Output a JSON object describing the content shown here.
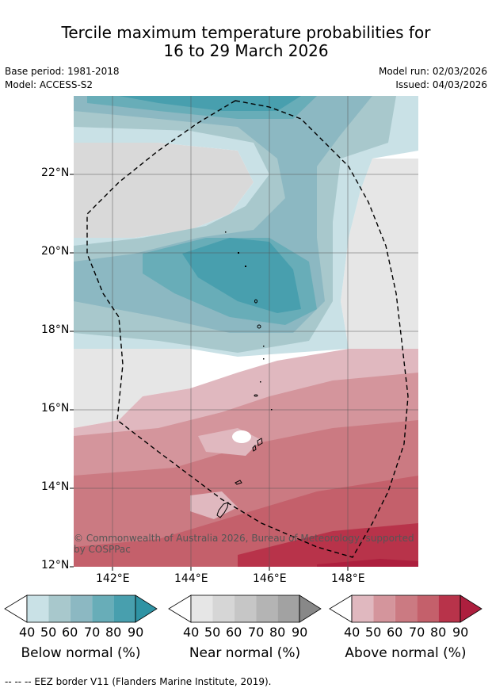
{
  "title_line1": "Tercile maximum temperature probabilities for",
  "title_line2": "16 to 29 March 2026",
  "base_period": "Base period: 1981-2018",
  "model": "Model: ACCESS-S2",
  "model_run": "Model run: 02/03/2026",
  "issued": "Issued: 04/03/2026",
  "copyright": "© Commonwealth of Australia 2026, Bureau of Meteorology, supported by COSPPac",
  "footer": "--  --  -- EEZ border V11 (Flanders Marine Institute, 2019).",
  "lat_labels": [
    "22°N",
    "20°N",
    "18°N",
    "16°N",
    "14°N",
    "12°N"
  ],
  "lon_labels": [
    "142°E",
    "144°E",
    "146°E",
    "148°E"
  ],
  "colorbars": [
    {
      "label": "Below normal (%)",
      "ticks": [
        "40",
        "50",
        "60",
        "70",
        "80",
        "90"
      ],
      "colors": [
        "#ffffff",
        "#c9e1e6",
        "#a8c8cc",
        "#8cb8c2",
        "#68adb8",
        "#489fae",
        "#2f93a4"
      ]
    },
    {
      "label": "Near normal (%)",
      "ticks": [
        "40",
        "50",
        "60",
        "70",
        "80",
        "90"
      ],
      "colors": [
        "#ffffff",
        "#e6e6e6",
        "#d6d6d6",
        "#c6c6c6",
        "#b4b4b4",
        "#a2a2a2",
        "#888888"
      ]
    },
    {
      "label": "Above normal (%)",
      "ticks": [
        "40",
        "50",
        "60",
        "70",
        "80",
        "90"
      ],
      "colors": [
        "#ffffff",
        "#e0b8bf",
        "#d4959c",
        "#cb7a82",
        "#c4606b",
        "#b8334a",
        "#ad1f3e"
      ]
    }
  ]
}
